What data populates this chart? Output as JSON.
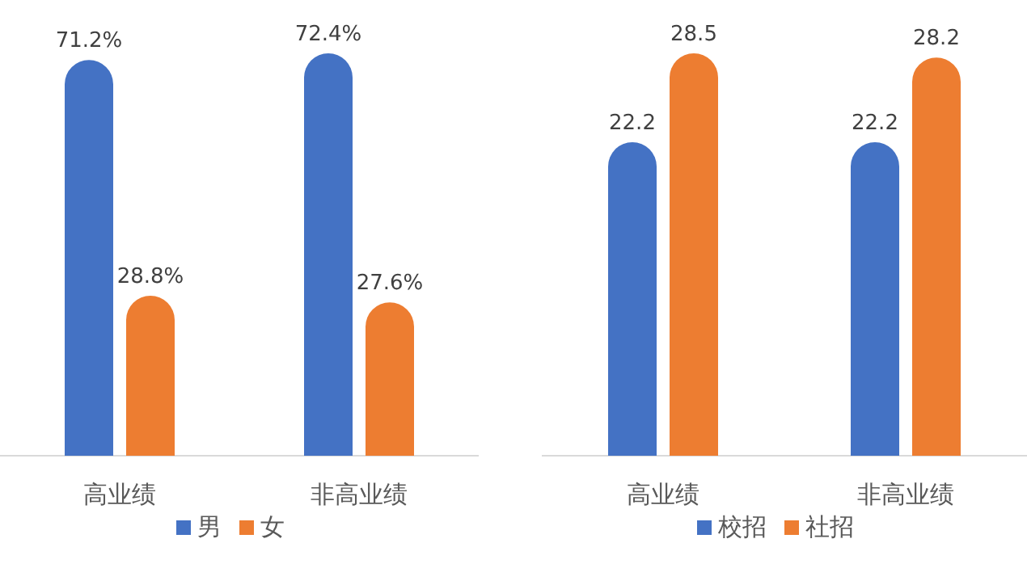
{
  "chart_data": [
    {
      "type": "bar",
      "categories": [
        "高业绩",
        "非高业绩"
      ],
      "series": [
        {
          "name": "男",
          "color": "#4472c4",
          "values": [
            71.2,
            72.4
          ],
          "value_labels": [
            "71.2%",
            "72.4%"
          ]
        },
        {
          "name": "女",
          "color": "#ed7d31",
          "values": [
            28.8,
            27.6
          ],
          "value_labels": [
            "28.8%",
            "27.6%"
          ]
        }
      ],
      "legend": "bottom"
    },
    {
      "type": "bar",
      "categories": [
        "高业绩",
        "非高业绩"
      ],
      "series": [
        {
          "name": "校招",
          "color": "#4472c4",
          "values": [
            22.2,
            22.2
          ]
        },
        {
          "name": "社招",
          "color": "#ed7d31",
          "values": [
            28.5,
            28.2
          ]
        }
      ],
      "legend": "bottom",
      "data_labels": true
    }
  ]
}
